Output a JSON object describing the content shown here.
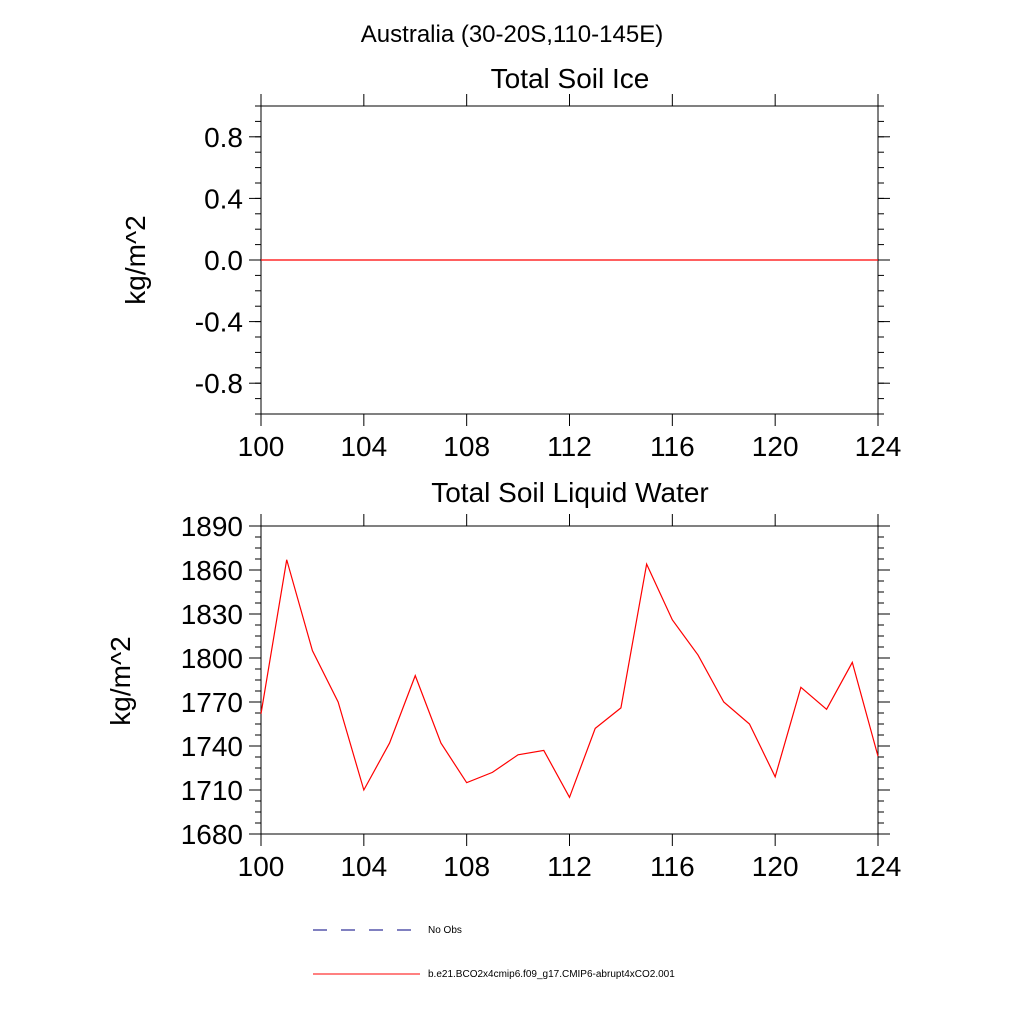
{
  "page": {
    "main_title": "Australia (30-20S,110-145E)"
  },
  "colors": {
    "series_model": "#ff0000",
    "series_obs": "#000080",
    "axes": "#000000",
    "background": "#ffffff"
  },
  "chart_data": [
    {
      "type": "line",
      "title": "Total Soil Ice",
      "xlabel": "",
      "ylabel": "kg/m^2",
      "xlim": [
        100,
        124
      ],
      "ylim": [
        -1.0,
        1.0
      ],
      "x_ticks": [
        "100",
        "104",
        "108",
        "112",
        "116",
        "120",
        "124"
      ],
      "y_ticks": [
        "0.8",
        "0.4",
        "0.0",
        "-0.4",
        "-0.8"
      ],
      "grid": false,
      "series": [
        {
          "name": "b.e21.BCO2x4cmip6.f09_g17.CMIP6-abrupt4xCO2.001",
          "x": [
            100,
            124
          ],
          "values": [
            0,
            0
          ]
        }
      ]
    },
    {
      "type": "line",
      "title": "Total Soil Liquid Water",
      "xlabel": "",
      "ylabel": "kg/m^2",
      "xlim": [
        100,
        124
      ],
      "ylim": [
        1680,
        1890
      ],
      "x_ticks": [
        "100",
        "104",
        "108",
        "112",
        "116",
        "120",
        "124"
      ],
      "y_ticks": [
        "1890",
        "1860",
        "1830",
        "1800",
        "1770",
        "1740",
        "1710",
        "1680"
      ],
      "grid": false,
      "series": [
        {
          "name": "b.e21.BCO2x4cmip6.f09_g17.CMIP6-abrupt4xCO2.001",
          "x": [
            100,
            101,
            102,
            103,
            104,
            105,
            106,
            107,
            108,
            109,
            110,
            111,
            112,
            113,
            114,
            115,
            116,
            117,
            118,
            119,
            120,
            121,
            122,
            123,
            124
          ],
          "values": [
            1762,
            1867,
            1805,
            1770,
            1710,
            1742,
            1788,
            1742,
            1715,
            1722,
            1734,
            1737,
            1705,
            1752,
            1766,
            1864,
            1826,
            1802,
            1770,
            1755,
            1719,
            1780,
            1765,
            1797,
            1733
          ]
        }
      ]
    }
  ],
  "legend": {
    "placement": "bottom",
    "entries": [
      {
        "label": "No Obs",
        "style": "dashed"
      },
      {
        "label": "b.e21.BCO2x4cmip6.f09_g17.CMIP6-abrupt4xCO2.001",
        "style": "solid"
      }
    ]
  }
}
